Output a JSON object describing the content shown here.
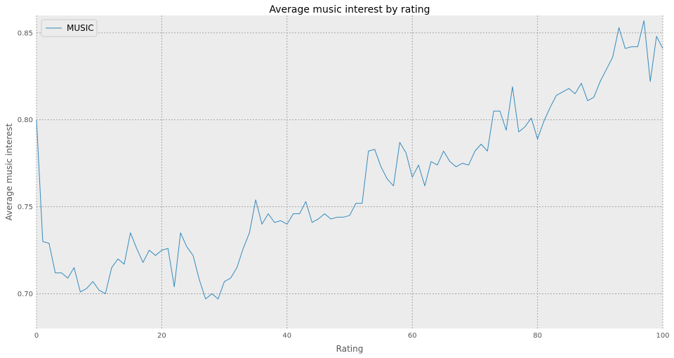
{
  "chart_data": {
    "type": "line",
    "title": "Average music interest by rating",
    "xlabel": "Rating",
    "ylabel": "Average music interest",
    "xlim": [
      0,
      100
    ],
    "ylim": [
      0.68,
      0.86
    ],
    "xticks": [
      0,
      20,
      40,
      60,
      80,
      100
    ],
    "xtick_labels": [
      "0",
      "20",
      "40",
      "60",
      "80",
      "100"
    ],
    "yticks": [
      0.7,
      0.75,
      0.8,
      0.85
    ],
    "ytick_labels": [
      "0.70",
      "0.75",
      "0.80",
      "0.85"
    ],
    "grid": true,
    "legend_position": "upper-left",
    "colors": {
      "background": "#ececec",
      "line": "#348abd",
      "grid": "#a6a6a6",
      "legend_frame": "#cccccc"
    },
    "series": [
      {
        "name": "MUSIC",
        "x": [
          0,
          1,
          2,
          3,
          4,
          5,
          6,
          7,
          8,
          9,
          10,
          11,
          12,
          13,
          14,
          15,
          16,
          17,
          18,
          19,
          20,
          21,
          22,
          23,
          24,
          25,
          26,
          27,
          28,
          29,
          30,
          31,
          32,
          33,
          34,
          35,
          36,
          37,
          38,
          39,
          40,
          41,
          42,
          43,
          44,
          45,
          46,
          47,
          48,
          49,
          50,
          51,
          52,
          53,
          54,
          55,
          56,
          57,
          58,
          59,
          60,
          61,
          62,
          63,
          64,
          65,
          66,
          67,
          68,
          69,
          70,
          71,
          72,
          73,
          74,
          75,
          76,
          77,
          78,
          79,
          80,
          81,
          82,
          83,
          84,
          85,
          86,
          87,
          88,
          89,
          90,
          91,
          92,
          93,
          94,
          95,
          96,
          97,
          98,
          99,
          100
        ],
        "values": [
          0.8,
          0.73,
          0.729,
          0.712,
          0.712,
          0.709,
          0.715,
          0.701,
          0.703,
          0.707,
          0.702,
          0.7,
          0.715,
          0.72,
          0.717,
          0.735,
          0.726,
          0.718,
          0.725,
          0.722,
          0.725,
          0.726,
          0.704,
          0.735,
          0.727,
          0.722,
          0.708,
          0.697,
          0.7,
          0.697,
          0.707,
          0.709,
          0.715,
          0.726,
          0.735,
          0.754,
          0.74,
          0.746,
          0.741,
          0.742,
          0.74,
          0.746,
          0.746,
          0.753,
          0.741,
          0.743,
          0.746,
          0.743,
          0.744,
          0.744,
          0.745,
          0.752,
          0.752,
          0.782,
          0.783,
          0.773,
          0.766,
          0.762,
          0.787,
          0.781,
          0.767,
          0.774,
          0.762,
          0.776,
          0.774,
          0.782,
          0.776,
          0.773,
          0.775,
          0.774,
          0.782,
          0.786,
          0.782,
          0.805,
          0.805,
          0.794,
          0.819,
          0.793,
          0.796,
          0.801,
          0.789,
          0.799,
          0.807,
          0.814,
          0.816,
          0.818,
          0.815,
          0.821,
          0.811,
          0.813,
          0.822,
          0.829,
          0.836,
          0.853,
          0.841,
          0.842,
          0.842,
          0.857,
          0.822,
          0.848,
          0.841
        ]
      }
    ]
  }
}
